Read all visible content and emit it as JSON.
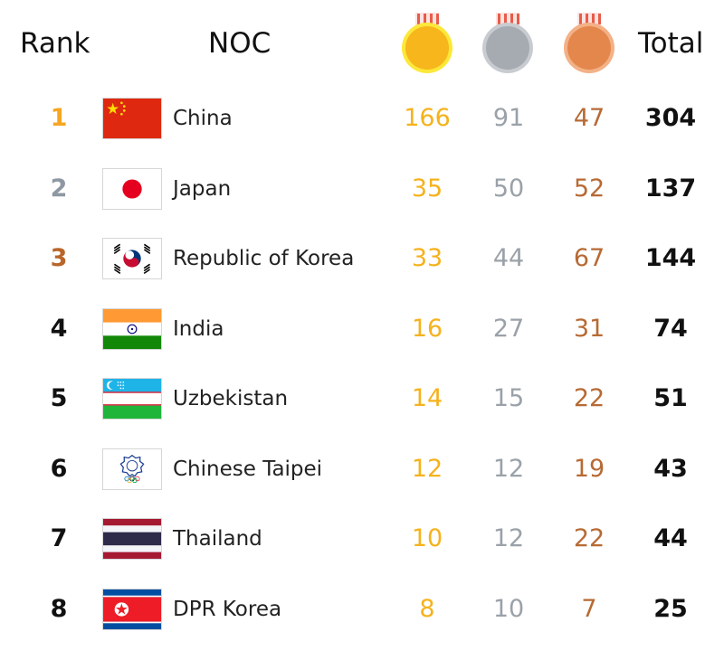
{
  "header": {
    "rank_label": "Rank",
    "noc_label": "NOC",
    "total_label": "Total",
    "medal_icons": [
      "gold-medal-icon",
      "silver-medal-icon",
      "bronze-medal-icon"
    ]
  },
  "colors": {
    "gold": "#f5b21c",
    "silver": "#9aa1a8",
    "bronze": "#b76a34",
    "rank_1": "#f5a623",
    "rank_2": "#8e98a3",
    "rank_3": "#b9652a",
    "rank_other": "#111111"
  },
  "rows": [
    {
      "rank": "1",
      "country": "China",
      "gold": "166",
      "silver": "91",
      "bronze": "47",
      "total": "304",
      "flag_icon": "china-flag-icon"
    },
    {
      "rank": "2",
      "country": "Japan",
      "gold": "35",
      "silver": "50",
      "bronze": "52",
      "total": "137",
      "flag_icon": "japan-flag-icon"
    },
    {
      "rank": "3",
      "country": "Republic of Korea",
      "gold": "33",
      "silver": "44",
      "bronze": "67",
      "total": "144",
      "flag_icon": "south-korea-flag-icon"
    },
    {
      "rank": "4",
      "country": "India",
      "gold": "16",
      "silver": "27",
      "bronze": "31",
      "total": "74",
      "flag_icon": "india-flag-icon"
    },
    {
      "rank": "5",
      "country": "Uzbekistan",
      "gold": "14",
      "silver": "15",
      "bronze": "22",
      "total": "51",
      "flag_icon": "uzbekistan-flag-icon"
    },
    {
      "rank": "6",
      "country": "Chinese Taipei",
      "gold": "12",
      "silver": "12",
      "bronze": "19",
      "total": "43",
      "flag_icon": "chinese-taipei-flag-icon"
    },
    {
      "rank": "7",
      "country": "Thailand",
      "gold": "10",
      "silver": "12",
      "bronze": "22",
      "total": "44",
      "flag_icon": "thailand-flag-icon"
    },
    {
      "rank": "8",
      "country": "DPR Korea",
      "gold": "8",
      "silver": "10",
      "bronze": "7",
      "total": "25",
      "flag_icon": "north-korea-flag-icon"
    }
  ]
}
